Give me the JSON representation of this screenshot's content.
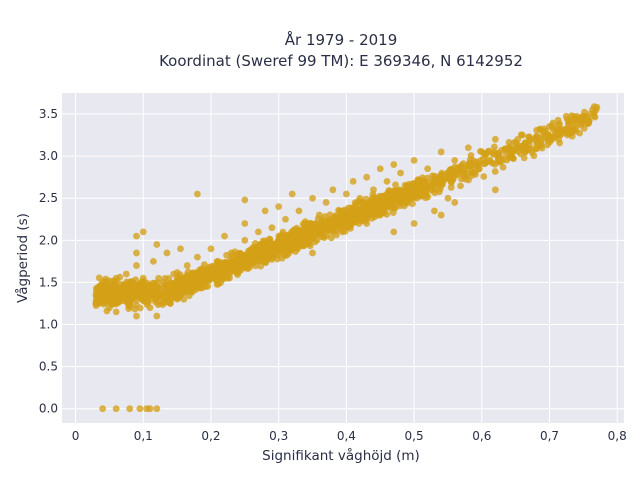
{
  "chart_data": {
    "type": "scatter",
    "title": "År 1979 - 2019",
    "subtitle": "Koordinat (Sweref 99 TM): E 369346, N 6142952",
    "xlabel": "Signifikant våghöjd (m)",
    "ylabel": "Vågperiod (s)",
    "xlim": [
      -0.02,
      0.81
    ],
    "ylim": [
      -0.17,
      3.75
    ],
    "xticks": [
      0,
      0.1,
      0.2,
      0.3,
      0.4,
      0.5,
      0.6,
      0.7,
      0.8
    ],
    "xtick_labels": [
      "0",
      "0,1",
      "0,2",
      "0,3",
      "0,4",
      "0,5",
      "0,6",
      "0,7",
      "0,8"
    ],
    "yticks": [
      0,
      0.5,
      1,
      1.5,
      2,
      2.5,
      3,
      3.5
    ],
    "ytick_labels": [
      "0.0",
      "0.5",
      "1.0",
      "1.5",
      "2.0",
      "2.5",
      "3.0",
      "3.5"
    ],
    "grid": true,
    "marker_color": "#d4a017",
    "plot_background": "#e8e8f0",
    "series": [
      {
        "points": [
          [
            0.04,
            0
          ],
          [
            0.06,
            0
          ],
          [
            0.08,
            0
          ],
          [
            0.095,
            0
          ],
          [
            0.105,
            0
          ],
          [
            0.11,
            0
          ],
          [
            0.12,
            0
          ],
          [
            0.03,
            1.25
          ],
          [
            0.03,
            1.35
          ],
          [
            0.035,
            1.45
          ],
          [
            0.04,
            1.3
          ],
          [
            0.045,
            1.5
          ],
          [
            0.05,
            1.2
          ],
          [
            0.055,
            1.4
          ],
          [
            0.06,
            1.55
          ],
          [
            0.06,
            1.15
          ],
          [
            0.07,
            1.35
          ],
          [
            0.075,
            1.6
          ],
          [
            0.08,
            1.25
          ],
          [
            0.085,
            1.45
          ],
          [
            0.09,
            1.1
          ],
          [
            0.09,
            1.7
          ],
          [
            0.1,
            1.3
          ],
          [
            0.1,
            1.55
          ],
          [
            0.11,
            1.2
          ],
          [
            0.11,
            1.45
          ],
          [
            0.115,
            1.75
          ],
          [
            0.12,
            1.1
          ],
          [
            0.12,
            1.35
          ],
          [
            0.13,
            1.5
          ],
          [
            0.135,
            1.85
          ],
          [
            0.14,
            1.25
          ],
          [
            0.145,
            1.6
          ],
          [
            0.15,
            1.4
          ],
          [
            0.155,
            1.9
          ],
          [
            0.16,
            1.3
          ],
          [
            0.165,
            1.7
          ],
          [
            0.17,
            1.5
          ],
          [
            0.18,
            1.8
          ],
          [
            0.18,
            1.45
          ],
          [
            0.19,
            1.65
          ],
          [
            0.2,
            1.55
          ],
          [
            0.2,
            1.9
          ],
          [
            0.21,
            1.75
          ],
          [
            0.22,
            1.6
          ],
          [
            0.22,
            2.05
          ],
          [
            0.23,
            1.85
          ],
          [
            0.24,
            1.7
          ],
          [
            0.25,
            2.0
          ],
          [
            0.25,
            2.2
          ],
          [
            0.26,
            1.8
          ],
          [
            0.27,
            2.1
          ],
          [
            0.28,
            1.95
          ],
          [
            0.28,
            2.35
          ],
          [
            0.29,
            2.15
          ],
          [
            0.3,
            2.0
          ],
          [
            0.3,
            2.4
          ],
          [
            0.31,
            2.25
          ],
          [
            0.32,
            2.05
          ],
          [
            0.33,
            2.35
          ],
          [
            0.34,
            2.2
          ],
          [
            0.35,
            2.5
          ],
          [
            0.36,
            2.3
          ],
          [
            0.37,
            2.45
          ],
          [
            0.38,
            2.6
          ],
          [
            0.39,
            2.35
          ],
          [
            0.4,
            2.55
          ],
          [
            0.41,
            2.7
          ],
          [
            0.42,
            2.5
          ],
          [
            0.43,
            2.75
          ],
          [
            0.44,
            2.6
          ],
          [
            0.45,
            2.85
          ],
          [
            0.46,
            2.7
          ],
          [
            0.47,
            2.9
          ],
          [
            0.48,
            2.8
          ],
          [
            0.5,
            2.95
          ],
          [
            0.52,
            2.85
          ],
          [
            0.54,
            3.05
          ],
          [
            0.56,
            2.95
          ],
          [
            0.58,
            3.1
          ],
          [
            0.6,
            3.05
          ],
          [
            0.62,
            3.2
          ],
          [
            0.64,
            3.1
          ],
          [
            0.66,
            3.25
          ],
          [
            0.68,
            3.2
          ],
          [
            0.7,
            3.35
          ],
          [
            0.72,
            3.3
          ],
          [
            0.74,
            3.45
          ],
          [
            0.76,
            3.5
          ],
          [
            0.77,
            3.58
          ],
          [
            0.1,
            2.1
          ],
          [
            0.09,
            2.05
          ],
          [
            0.09,
            1.85
          ],
          [
            0.12,
            1.95
          ],
          [
            0.18,
            2.55
          ],
          [
            0.25,
            2.48
          ],
          [
            0.32,
            2.55
          ],
          [
            0.5,
            2.2
          ],
          [
            0.53,
            2.35
          ],
          [
            0.54,
            2.3
          ],
          [
            0.56,
            2.45
          ],
          [
            0.62,
            2.6
          ],
          [
            0.47,
            2.1
          ],
          [
            0.45,
            2.3
          ],
          [
            0.43,
            2.2
          ],
          [
            0.38,
            2.1
          ],
          [
            0.35,
            1.85
          ],
          [
            0.55,
            2.5
          ]
        ]
      }
    ]
  }
}
